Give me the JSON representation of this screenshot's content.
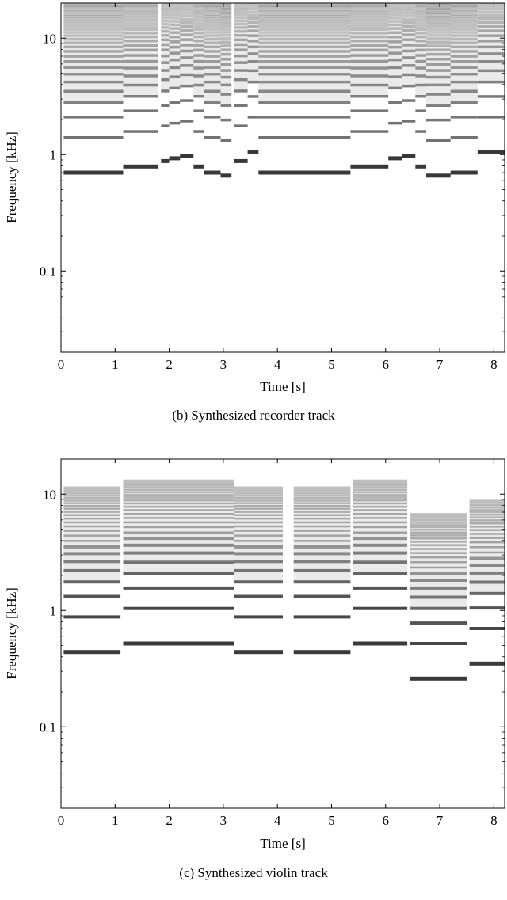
{
  "charts": [
    {
      "id": "recorder",
      "type": "heatmap",
      "xlabel": "Time [s]",
      "ylabel": "Frequency [kHz]",
      "xlim": [
        0,
        8.2
      ],
      "ylim": [
        0.02,
        20
      ],
      "y_scale": "log",
      "x_ticks": [
        0,
        1,
        2,
        3,
        4,
        5,
        6,
        7,
        8
      ],
      "x_tick_labels": [
        "0",
        "1",
        "2",
        "3",
        "4",
        "5",
        "6",
        "7",
        "8"
      ],
      "y_ticks": [
        0.1,
        1,
        10
      ],
      "y_tick_labels": [
        "0.1",
        "1",
        "10"
      ],
      "caption": "(b) Synthesized recorder track",
      "notes": [
        {
          "start": 0.05,
          "end": 1.15,
          "f0": 0.7,
          "harmonics": 16
        },
        {
          "start": 1.15,
          "end": 1.8,
          "f0": 0.79,
          "harmonics": 20
        },
        {
          "start": 1.85,
          "end": 2.0,
          "f0": 0.88,
          "harmonics": 18
        },
        {
          "start": 2.0,
          "end": 2.2,
          "f0": 0.93,
          "harmonics": 18
        },
        {
          "start": 2.2,
          "end": 2.45,
          "f0": 0.97,
          "harmonics": 18
        },
        {
          "start": 2.45,
          "end": 2.65,
          "f0": 0.79,
          "harmonics": 18
        },
        {
          "start": 2.65,
          "end": 2.95,
          "f0": 0.7,
          "harmonics": 18
        },
        {
          "start": 2.95,
          "end": 3.15,
          "f0": 0.66,
          "harmonics": 18
        },
        {
          "start": 3.2,
          "end": 3.45,
          "f0": 0.88,
          "harmonics": 18
        },
        {
          "start": 3.45,
          "end": 3.65,
          "f0": 1.05,
          "harmonics": 18
        },
        {
          "start": 3.65,
          "end": 5.35,
          "f0": 0.7,
          "harmonics": 18
        },
        {
          "start": 5.35,
          "end": 6.05,
          "f0": 0.79,
          "harmonics": 20
        },
        {
          "start": 6.05,
          "end": 6.3,
          "f0": 0.93,
          "harmonics": 18
        },
        {
          "start": 6.3,
          "end": 6.55,
          "f0": 0.97,
          "harmonics": 18
        },
        {
          "start": 6.55,
          "end": 6.75,
          "f0": 0.79,
          "harmonics": 18
        },
        {
          "start": 6.75,
          "end": 7.2,
          "f0": 0.66,
          "harmonics": 18
        },
        {
          "start": 7.2,
          "end": 7.7,
          "f0": 0.7,
          "harmonics": 18
        },
        {
          "start": 7.7,
          "end": 8.2,
          "f0": 1.05,
          "harmonics": 16
        }
      ]
    },
    {
      "id": "violin",
      "type": "heatmap",
      "xlabel": "Time [s]",
      "ylabel": "Frequency [kHz]",
      "xlim": [
        0,
        8.2
      ],
      "ylim": [
        0.02,
        20
      ],
      "y_scale": "log",
      "x_ticks": [
        0,
        1,
        2,
        3,
        4,
        5,
        6,
        7,
        8
      ],
      "x_tick_labels": [
        "0",
        "1",
        "2",
        "3",
        "4",
        "5",
        "6",
        "7",
        "8"
      ],
      "y_ticks": [
        0.1,
        1,
        10
      ],
      "y_tick_labels": [
        "0.1",
        "1",
        "10"
      ],
      "caption": "(c) Synthesized violin track",
      "notes": [
        {
          "start": 0.05,
          "end": 1.1,
          "f0": 0.44,
          "fmax": 11.5
        },
        {
          "start": 1.15,
          "end": 3.2,
          "f0": 0.52,
          "fmax": 13.5
        },
        {
          "start": 3.2,
          "end": 4.1,
          "f0": 0.44,
          "fmax": 11.5
        },
        {
          "start": 4.3,
          "end": 5.35,
          "f0": 0.44,
          "fmax": 11.5
        },
        {
          "start": 5.4,
          "end": 6.4,
          "f0": 0.52,
          "fmax": 13.5
        },
        {
          "start": 6.45,
          "end": 7.5,
          "f0": 0.26,
          "fmax": 6.8
        },
        {
          "start": 7.55,
          "end": 8.2,
          "f0": 0.35,
          "fmax": 9.0
        }
      ]
    }
  ]
}
